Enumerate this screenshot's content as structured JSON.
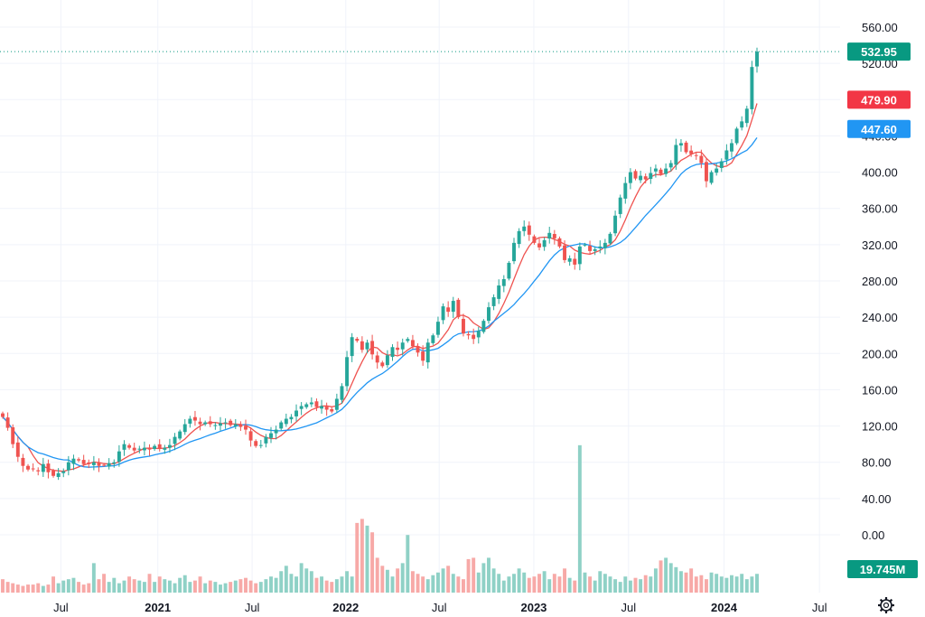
{
  "chart_data": {
    "type": "candlestick",
    "title": "",
    "xlabel": "",
    "ylabel": "",
    "ylim": [
      0,
      560
    ],
    "y_ticks": [
      0,
      40,
      80,
      120,
      160,
      200,
      240,
      280,
      320,
      360,
      400,
      440,
      480,
      520,
      560
    ],
    "y_tick_labels": [
      "0.00",
      "40.00",
      "80.00",
      "120.00",
      "160.00",
      "200.00",
      "240.00",
      "280.00",
      "320.00",
      "360.00",
      "400.00",
      "440.00",
      "480.00",
      "520.00",
      "560.00"
    ],
    "x_ticks": [
      {
        "label": "Jul",
        "bold": false,
        "pos": 0.0658
      },
      {
        "label": "2021",
        "bold": true,
        "pos": 0.1706
      },
      {
        "label": "Jul",
        "bold": false,
        "pos": 0.2726
      },
      {
        "label": "2022",
        "bold": true,
        "pos": 0.3738
      },
      {
        "label": "Jul",
        "bold": false,
        "pos": 0.4748
      },
      {
        "label": "2023",
        "bold": true,
        "pos": 0.5771
      },
      {
        "label": "Jul",
        "bold": false,
        "pos": 0.6795
      },
      {
        "label": "2024",
        "bold": true,
        "pos": 0.7827
      },
      {
        "label": "Jul",
        "bold": false,
        "pos": 0.8859
      }
    ],
    "colors": {
      "up": "#26a69a",
      "down": "#ef5350",
      "ma_fast": "#ef5350",
      "ma_slow": "#2196f3",
      "vol_up": "#8fd1c6",
      "vol_down": "#f7a9a7",
      "last_price_tag": "#089981",
      "ma_fast_tag": "#f23645",
      "ma_slow_tag": "#2196f3"
    },
    "last_price": 532.95,
    "last_price_label": "532.95",
    "ma_fast_last": 479.9,
    "ma_fast_label": "479.90",
    "ma_slow_last": 447.6,
    "ma_slow_label": "447.60",
    "volume_label": "19.745M",
    "candles_close": [
      130,
      118,
      100,
      86,
      76,
      72,
      73,
      70,
      78,
      69,
      65,
      68,
      70,
      80,
      84,
      82,
      78,
      78,
      80,
      76,
      77,
      79,
      80,
      92,
      100,
      96,
      93,
      95,
      96,
      94,
      98,
      95,
      96,
      99,
      108,
      114,
      122,
      128,
      126,
      122,
      124,
      122,
      121,
      123,
      124,
      121,
      122,
      119,
      116,
      104,
      98,
      99,
      108,
      112,
      116,
      124,
      128,
      130,
      137,
      142,
      144,
      146,
      141,
      142,
      138,
      136,
      150,
      164,
      196,
      218,
      214,
      204,
      212,
      199,
      190,
      186,
      198,
      207,
      204,
      212,
      216,
      208,
      201,
      192,
      212,
      220,
      235,
      252,
      246,
      258,
      240,
      222,
      220,
      216,
      225,
      236,
      251,
      262,
      275,
      282,
      300,
      322,
      335,
      340,
      331,
      322,
      317,
      325,
      333,
      327,
      318,
      303,
      305,
      298,
      318,
      320,
      313,
      315,
      318,
      322,
      332,
      352,
      372,
      388,
      400,
      393,
      396,
      392,
      399,
      404,
      398,
      404,
      410,
      430,
      432,
      422,
      420,
      418,
      410,
      390,
      400,
      404,
      412,
      424,
      432,
      448,
      456,
      470,
      516,
      532.95
    ],
    "volume": [
      10,
      8,
      7,
      6,
      5,
      6,
      6,
      7,
      5,
      6,
      12,
      7,
      9,
      10,
      11,
      8,
      6,
      7,
      22,
      10,
      14,
      8,
      11,
      7,
      9,
      12,
      10,
      9,
      8,
      14,
      8,
      12,
      10,
      9,
      7,
      11,
      13,
      8,
      9,
      12,
      7,
      9,
      8,
      6,
      7,
      8,
      9,
      10,
      11,
      9,
      7,
      8,
      10,
      12,
      11,
      16,
      20,
      14,
      12,
      22,
      18,
      16,
      11,
      12,
      9,
      8,
      10,
      12,
      16,
      12,
      52,
      55,
      50,
      45,
      26,
      20,
      17,
      12,
      18,
      22,
      43,
      16,
      14,
      12,
      10,
      13,
      15,
      18,
      20,
      14,
      12,
      10,
      25,
      26,
      15,
      22,
      26,
      18,
      14,
      9,
      12,
      14,
      18,
      15,
      11,
      12,
      14,
      16,
      10,
      14,
      12,
      18,
      11,
      9,
      110,
      15,
      12,
      9,
      16,
      14,
      12,
      10,
      8,
      12,
      9,
      11,
      10,
      13,
      12,
      18,
      24,
      26,
      22,
      19,
      16,
      15,
      18,
      12,
      13,
      10,
      15,
      14,
      12,
      11,
      13,
      12,
      14,
      10,
      12,
      14
    ],
    "volume_ylim": [
      0,
      120
    ]
  }
}
